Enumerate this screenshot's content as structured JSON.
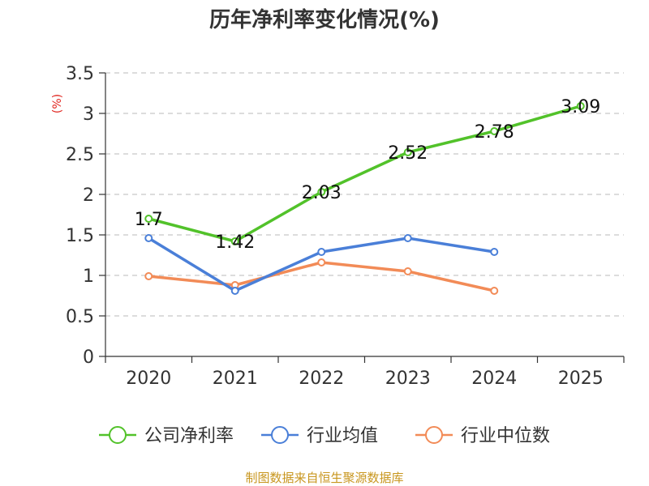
{
  "chart_data": {
    "type": "line",
    "title": "历年净利率变化情况(%)",
    "xlabel": "",
    "ylabel": "(%)",
    "categories": [
      "2020",
      "2021",
      "2022",
      "2023",
      "2024",
      "2025"
    ],
    "ylim": [
      0,
      3.5
    ],
    "yticks": [
      "0",
      "0.5",
      "1",
      "1.5",
      "2",
      "2.5",
      "3",
      "3.5"
    ],
    "grid": true,
    "legend_position": "bottom",
    "series": [
      {
        "name": "公司净利率",
        "color": "#52c22a",
        "values": [
          1.7,
          1.42,
          2.03,
          2.52,
          2.78,
          3.09
        ],
        "labels": [
          "1.7",
          "1.42",
          "2.03",
          "2.52",
          "2.78",
          "3.09"
        ]
      },
      {
        "name": "行业均值",
        "color": "#4a7fd8",
        "values": [
          1.46,
          0.81,
          1.29,
          1.46,
          1.29,
          null
        ]
      },
      {
        "name": "行业中位数",
        "color": "#f28b57",
        "values": [
          0.99,
          0.88,
          1.16,
          1.05,
          0.81,
          null
        ]
      }
    ]
  },
  "footer": {
    "source": "制图数据来自恒生聚源数据库"
  }
}
